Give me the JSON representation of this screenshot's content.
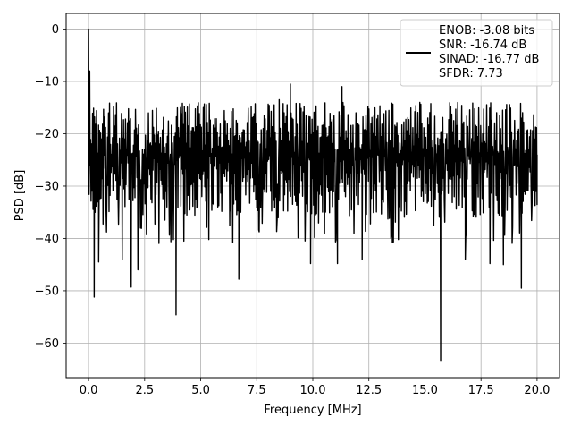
{
  "chart_data": {
    "type": "line",
    "title": "",
    "xlabel": "Frequency [MHz]",
    "ylabel": "PSD [dB]",
    "xlim": [
      -1.0,
      21.0
    ],
    "ylim": [
      -66.6,
      3.0
    ],
    "x_ticks": [
      0.0,
      2.5,
      5.0,
      7.5,
      10.0,
      12.5,
      15.0,
      17.5,
      20.0
    ],
    "x_tick_labels": [
      "0.0",
      "2.5",
      "5.0",
      "7.5",
      "10.0",
      "12.5",
      "15.0",
      "17.5",
      "20.0"
    ],
    "y_ticks": [
      0,
      -10,
      -20,
      -30,
      -40,
      -50,
      -60
    ],
    "y_tick_labels": [
      "0",
      "−10",
      "−20",
      "−30",
      "−40",
      "−50",
      "−60"
    ],
    "grid": true,
    "legend": {
      "placement": "upper right",
      "entries": [
        "ENOB: -3.08 bits",
        "SNR: -16.74 dB",
        "SINAD: -16.77 dB",
        "SFDR: 7.73"
      ]
    },
    "series": [
      {
        "color": "#000000",
        "x_range": [
          0.0,
          20.0
        ],
        "num_points": 900,
        "noise_floor_db": [
          -40,
          -12
        ],
        "notable_points": [
          {
            "x": 0.0,
            "y": 0.0
          },
          {
            "x": 0.05,
            "y": -8.0
          },
          {
            "x": 0.25,
            "y": -51.2
          },
          {
            "x": 0.45,
            "y": -44.5
          },
          {
            "x": 1.5,
            "y": -44.0
          },
          {
            "x": 1.9,
            "y": -49.3
          },
          {
            "x": 2.2,
            "y": -46.0
          },
          {
            "x": 3.9,
            "y": -54.6
          },
          {
            "x": 4.1,
            "y": -15.0
          },
          {
            "x": 6.7,
            "y": -47.8
          },
          {
            "x": 8.5,
            "y": -13.5
          },
          {
            "x": 9.0,
            "y": -10.5
          },
          {
            "x": 9.9,
            "y": -44.8
          },
          {
            "x": 11.1,
            "y": -44.8
          },
          {
            "x": 11.3,
            "y": -11.0
          },
          {
            "x": 12.2,
            "y": -44.0
          },
          {
            "x": 15.7,
            "y": -63.3
          },
          {
            "x": 16.8,
            "y": -44.0
          },
          {
            "x": 17.9,
            "y": -44.8
          },
          {
            "x": 18.5,
            "y": -45.0
          },
          {
            "x": 19.3,
            "y": -49.5
          },
          {
            "x": 20.0,
            "y": -24.0
          }
        ]
      }
    ]
  }
}
